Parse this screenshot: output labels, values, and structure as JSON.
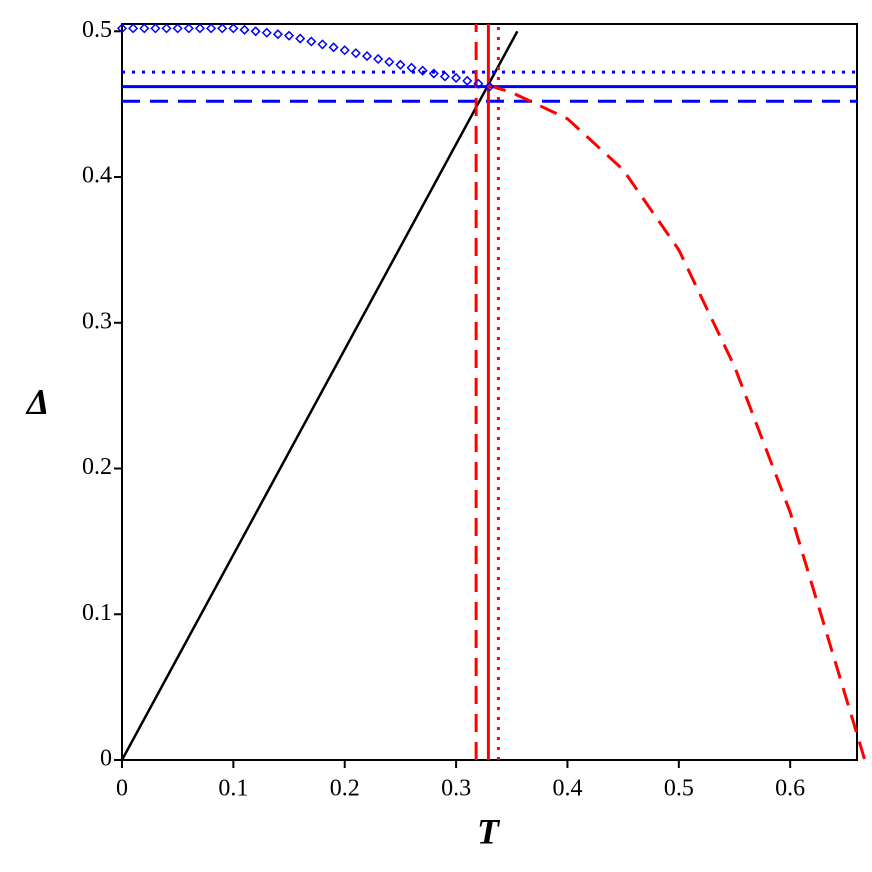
{
  "chart_data": {
    "type": "line",
    "x_label": "T",
    "y_label": "Δ",
    "xlim": [
      0,
      0.66
    ],
    "ylim": [
      0,
      0.505
    ],
    "xticks": [
      0,
      0.1,
      0.2,
      0.3,
      0.4,
      0.5,
      0.6
    ],
    "yticks": [
      0,
      0.1,
      0.2,
      0.3,
      0.4,
      0.5
    ],
    "series": [
      {
        "color": "#000000",
        "style": "solid",
        "x": [
          0,
          0.355
        ],
        "values": [
          0,
          0.5
        ]
      },
      {
        "color": "#0000ff",
        "style": "dotted",
        "x": [
          0,
          0.66
        ],
        "values": [
          0.472,
          0.472
        ]
      },
      {
        "color": "#0000ff",
        "style": "solid",
        "x": [
          0,
          0.66
        ],
        "values": [
          0.462,
          0.462
        ]
      },
      {
        "color": "#0000ff",
        "style": "dashed",
        "x": [
          0,
          0.66
        ],
        "values": [
          0.452,
          0.452
        ]
      },
      {
        "color": "#ff0000",
        "style": "dashed",
        "x": [
          0.318,
          0.318
        ],
        "values": [
          0,
          0.505
        ]
      },
      {
        "color": "#ff0000",
        "style": "solid",
        "x": [
          0.329,
          0.329
        ],
        "values": [
          0,
          0.505
        ]
      },
      {
        "color": "#ff0000",
        "style": "dotted",
        "x": [
          0.338,
          0.338
        ],
        "values": [
          0,
          0.505
        ]
      },
      {
        "color": "#ff0000",
        "style": "dashed",
        "x": [
          0.329,
          0.35,
          0.4,
          0.45,
          0.5,
          0.55,
          0.6,
          0.667
        ],
        "values": [
          0.463,
          0.458,
          0.44,
          0.405,
          0.35,
          0.27,
          0.17,
          0
        ]
      },
      {
        "color": "#0000ff",
        "style": "diamond",
        "x": [
          0,
          0.01,
          0.02,
          0.03,
          0.04,
          0.05,
          0.06,
          0.07,
          0.08,
          0.09,
          0.1,
          0.11,
          0.12,
          0.13,
          0.14,
          0.15,
          0.16,
          0.17,
          0.18,
          0.19,
          0.2,
          0.21,
          0.22,
          0.23,
          0.24,
          0.25,
          0.26,
          0.27,
          0.28,
          0.29,
          0.3,
          0.31,
          0.32,
          0.33
        ],
        "values": [
          0.502,
          0.502,
          0.502,
          0.502,
          0.502,
          0.502,
          0.502,
          0.502,
          0.502,
          0.502,
          0.502,
          0.501,
          0.5,
          0.499,
          0.498,
          0.497,
          0.495,
          0.493,
          0.491,
          0.489,
          0.487,
          0.485,
          0.483,
          0.481,
          0.479,
          0.477,
          0.475,
          0.473,
          0.471,
          0.469,
          0.468,
          0.466,
          0.464,
          0.462
        ]
      }
    ]
  }
}
